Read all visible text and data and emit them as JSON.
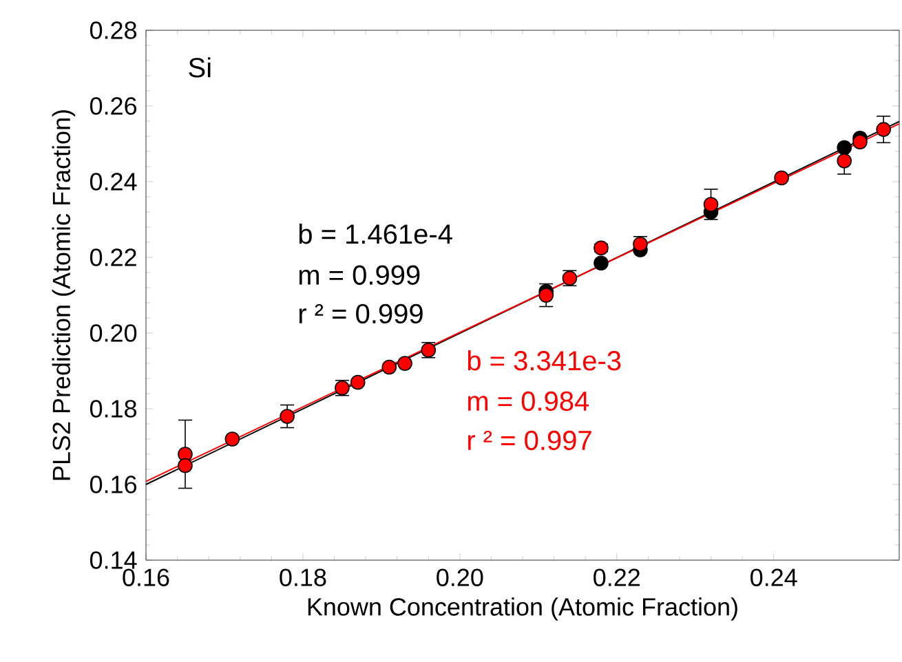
{
  "chart_data": {
    "type": "scatter",
    "xlabel": "Known Concentration (Atomic Fraction)",
    "ylabel": "PLS2 Prediction (Atomic Fraction)",
    "xlim": [
      0.16,
      0.256
    ],
    "ylim": [
      0.14,
      0.28
    ],
    "xticks": [
      {
        "value": 0.16,
        "label": "0.16"
      },
      {
        "value": 0.18,
        "label": "0.18"
      },
      {
        "value": 0.2,
        "label": "0.20"
      },
      {
        "value": 0.22,
        "label": "0.22"
      },
      {
        "value": 0.24,
        "label": "0.24"
      }
    ],
    "yticks": [
      {
        "value": 0.14,
        "label": "0.14"
      },
      {
        "value": 0.16,
        "label": "0.16"
      },
      {
        "value": 0.18,
        "label": "0.18"
      },
      {
        "value": 0.2,
        "label": "0.20"
      },
      {
        "value": 0.22,
        "label": "0.22"
      },
      {
        "value": 0.24,
        "label": "0.24"
      },
      {
        "value": 0.26,
        "label": "0.26"
      },
      {
        "value": 0.28,
        "label": "0.28"
      }
    ],
    "annotations": [
      "Si",
      "b = 1.461e-4",
      "m = 0.999",
      "r ² = 0.999",
      "b = 3.341e-3",
      "m = 0.984",
      "r ² = 0.997"
    ],
    "series": [
      {
        "type": "line",
        "color": "#000000",
        "x": [
          0.16,
          0.256
        ],
        "values": [
          0.16,
          0.2559
        ]
      },
      {
        "type": "line",
        "color": "#ff0000",
        "x": [
          0.16,
          0.256
        ],
        "values": [
          0.1608,
          0.2553
        ]
      },
      {
        "marker": "circle",
        "color": "#000000",
        "x": [
          0.211,
          0.218,
          0.223,
          0.232,
          0.249,
          0.251
        ],
        "values": [
          0.211,
          0.2185,
          0.222,
          0.232,
          0.249,
          0.2515
        ]
      },
      {
        "marker": "circle",
        "color": "#ff0000",
        "x": [
          0.165,
          0.165,
          0.171,
          0.178,
          0.185,
          0.187,
          0.191,
          0.193,
          0.196,
          0.211,
          0.214,
          0.218,
          0.223,
          0.232,
          0.241,
          0.249,
          0.251,
          0.254
        ],
        "values": [
          0.168,
          0.165,
          0.172,
          0.178,
          0.1855,
          0.187,
          0.191,
          0.192,
          0.1955,
          0.21,
          0.2145,
          0.2225,
          0.2235,
          0.234,
          0.241,
          0.2455,
          0.2505,
          0.2538
        ],
        "errors": [
          0.009,
          null,
          null,
          0.003,
          0.002,
          null,
          null,
          null,
          0.002,
          0.003,
          0.002,
          0.001,
          0.002,
          0.004,
          null,
          0.0035,
          null,
          0.0035
        ]
      }
    ]
  }
}
